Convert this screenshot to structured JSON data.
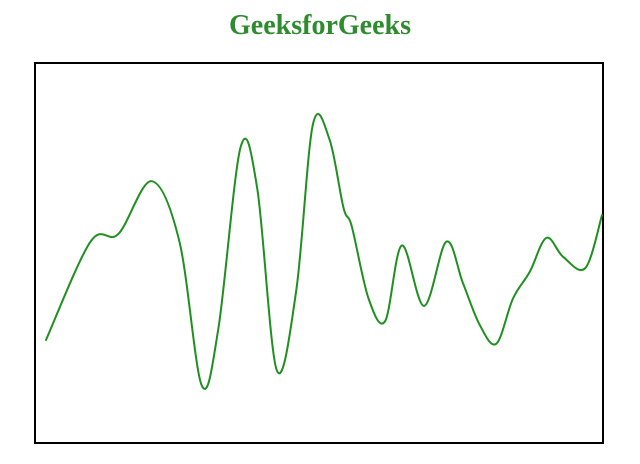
{
  "page": {
    "title": "GeeksforGeeks"
  },
  "colors": {
    "title": "#2e8b2e",
    "curve": "#1f8f1f",
    "canvas_border": "#000000",
    "canvas_background": "#ffffff"
  },
  "chart_data": {
    "type": "line",
    "title": "",
    "xlabel": "",
    "ylabel": "",
    "grid": false,
    "axes_visible": false,
    "smooth": true,
    "xlim": [
      0,
      100
    ],
    "ylim": [
      0,
      100
    ],
    "series": [
      {
        "x": [
          0,
          8,
          13,
          19,
          24,
          28,
          31,
          35,
          38,
          41.5,
          45,
          48,
          51,
          53.5,
          55,
          58,
          61,
          64,
          68,
          72,
          75,
          78,
          81,
          84,
          87,
          90,
          93,
          97,
          100
        ],
        "y": [
          27,
          53,
          55,
          69,
          53,
          15,
          30,
          78,
          67,
          19,
          40,
          84,
          80,
          62,
          57,
          38,
          32,
          52,
          36,
          53,
          42,
          31,
          26,
          38,
          45,
          54,
          49,
          46,
          60
        ],
        "color": "#1f8f1f"
      }
    ]
  }
}
